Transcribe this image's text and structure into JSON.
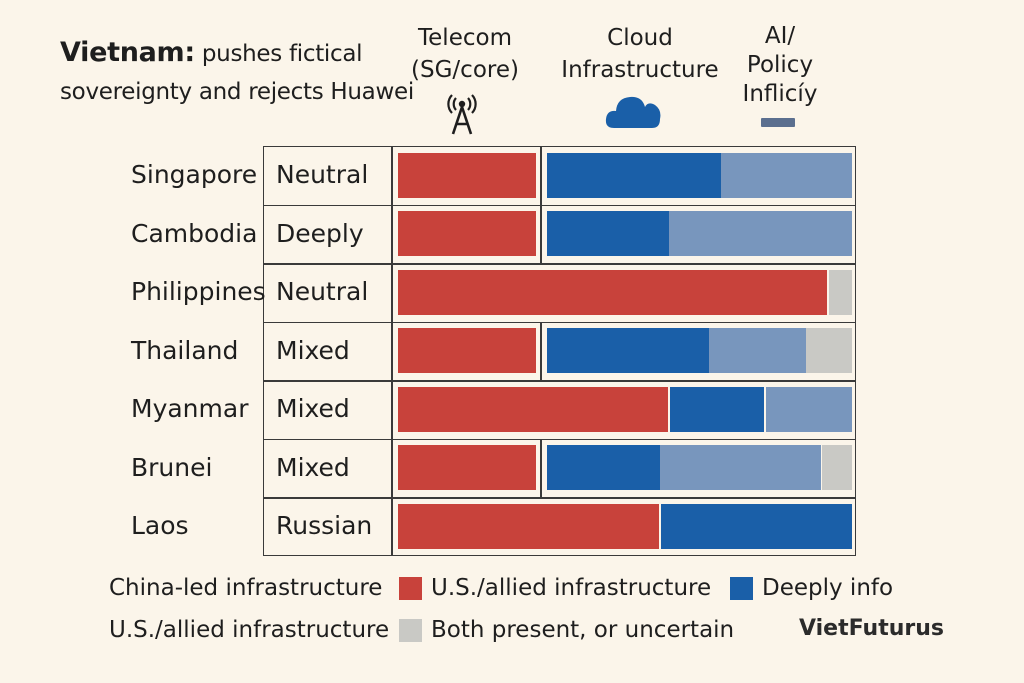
{
  "title": {
    "bold": "Vietnam:",
    "line1_rest": " pushes fictical",
    "line2": "sovereignty and rejects Huawei"
  },
  "columns": [
    {
      "line1": "Telecom",
      "line2": "(SG/core)",
      "line3": "",
      "icon": "antenna-icon"
    },
    {
      "line1": "Cloud",
      "line2": "Infrastructure",
      "line3": "",
      "icon": "cloud-icon"
    },
    {
      "line1": "AI/",
      "line2": "Policy",
      "line3": "Inflicíy",
      "icon": "policy-bar-icon"
    }
  ],
  "colors": {
    "china": "#c8423b",
    "us_allied": "#1a5fa8",
    "deeply_info": "#7896bd",
    "uncertain": "#c9c9c5",
    "grid": "#3a3a3a",
    "background": "#fbf5ea"
  },
  "chart_data": {
    "type": "bar",
    "orientation": "horizontal",
    "stacked": true,
    "title": "Vietnam: pushes fictical sovereignty and rejects Huawei",
    "categories": [
      "Singapore",
      "Cambodia",
      "Philippines",
      "Thailand",
      "Myanmar",
      "Brunei",
      "Laos"
    ],
    "statuses": [
      "Neutral",
      "Deeply",
      "Neutral",
      "Mixed",
      "Mixed",
      "Mixed",
      "Russian"
    ],
    "rows": [
      {
        "country": "Singapore",
        "status": "Neutral",
        "telecom_split": true,
        "segments": [
          {
            "series": "china",
            "value": 1
          },
          {
            "series": "us_allied",
            "value": 0.57
          },
          {
            "series": "deeply_info",
            "value": 0.43
          }
        ]
      },
      {
        "country": "Cambodia",
        "status": "Deeply",
        "telecom_split": true,
        "segments": [
          {
            "series": "china",
            "value": 1
          },
          {
            "series": "us_allied",
            "value": 0.4
          },
          {
            "series": "deeply_info",
            "value": 0.6
          }
        ]
      },
      {
        "country": "Philippines",
        "status": "Neutral",
        "telecom_split": false,
        "segments": [
          {
            "series": "china",
            "value": 0.95
          },
          {
            "series": "uncertain",
            "value": 0.05
          }
        ]
      },
      {
        "country": "Thailand",
        "status": "Mixed",
        "telecom_split": true,
        "segments": [
          {
            "series": "china",
            "value": 1
          },
          {
            "series": "us_allied",
            "value": 0.53
          },
          {
            "series": "deeply_info",
            "value": 0.32
          },
          {
            "series": "uncertain",
            "value": 0.15
          }
        ]
      },
      {
        "country": "Myanmar",
        "status": "Mixed",
        "telecom_split": false,
        "segments": [
          {
            "series": "china",
            "value": 0.6
          },
          {
            "series": "us_allied",
            "value": 0.21
          },
          {
            "series": "deeply_info",
            "value": 0.19
          }
        ]
      },
      {
        "country": "Brunei",
        "status": "Mixed",
        "telecom_split": true,
        "segments": [
          {
            "series": "china",
            "value": 1
          },
          {
            "series": "us_allied",
            "value": 0.37
          },
          {
            "series": "deeply_info",
            "value": 0.53
          },
          {
            "series": "uncertain",
            "value": 0.1
          }
        ]
      },
      {
        "country": "Laos",
        "status": "Russian",
        "telecom_split": false,
        "segments": [
          {
            "series": "china",
            "value": 0.58
          },
          {
            "series": "us_allied",
            "value": 0.42
          }
        ]
      }
    ],
    "legend": [
      {
        "label": "China-led infrastructure",
        "swatch_series": "china"
      },
      {
        "label": "U.S./allied infrastructure",
        "swatch_series": "us_allied"
      },
      {
        "label": "Deeply info",
        "swatch_series": null
      },
      {
        "label": "U.S./allied infrastructure",
        "swatch_series": "uncertain"
      },
      {
        "label": "Both present, or uncertain",
        "swatch_series": null
      }
    ]
  },
  "brand": "VietFuturus"
}
